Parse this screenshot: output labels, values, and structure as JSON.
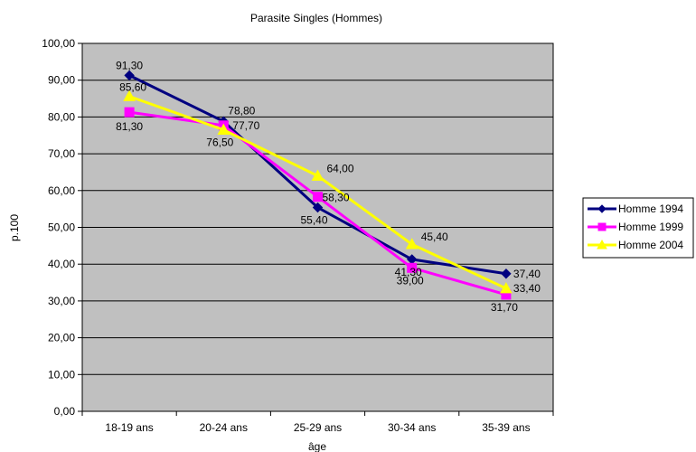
{
  "chart_data": {
    "type": "line",
    "title": "Parasite Singles (Hommes)",
    "xlabel": "âge",
    "ylabel": "p.100",
    "categories": [
      "18-19 ans",
      "20-24 ans",
      "25-29 ans",
      "30-34 ans",
      "35-39 ans"
    ],
    "ylim": [
      0,
      100
    ],
    "ytick_step": 10,
    "ytick_labels": [
      "0,00",
      "10,00",
      "20,00",
      "30,00",
      "40,00",
      "50,00",
      "60,00",
      "70,00",
      "80,00",
      "90,00",
      "100,00"
    ],
    "grid": true,
    "plot_background": "#c0c0c0",
    "legend_position": "right",
    "series": [
      {
        "name": "Homme 1994",
        "color": "#000080",
        "marker": "diamond",
        "values": [
          91.3,
          78.8,
          55.4,
          41.3,
          37.4
        ],
        "labels": [
          "91,30",
          "78,80",
          "55,40",
          "41,30",
          "37,40"
        ]
      },
      {
        "name": "Homme 1999",
        "color": "#ff00ff",
        "marker": "square",
        "values": [
          81.3,
          77.7,
          58.3,
          39.0,
          31.7
        ],
        "labels": [
          "81,30",
          "77,70",
          "58,30",
          "39,00",
          "31,70"
        ]
      },
      {
        "name": "Homme 2004",
        "color": "#ffff00",
        "marker": "triangle",
        "values": [
          85.6,
          76.5,
          64.0,
          45.4,
          33.4
        ],
        "labels": [
          "85,60",
          "76,50",
          "64,00",
          "45,40",
          "33,40"
        ]
      }
    ]
  }
}
